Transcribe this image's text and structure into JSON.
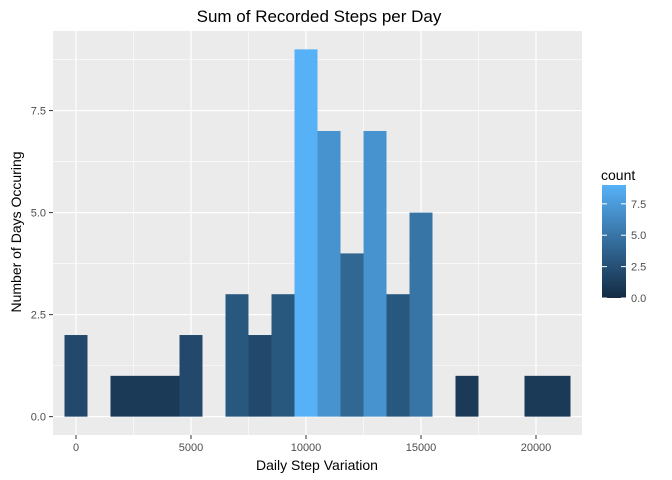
{
  "chart_data": {
    "type": "bar",
    "title": "Sum of Recorded Steps per Day",
    "xlabel": "Daily Step Variation",
    "ylabel": "Number of Days Occuring",
    "xlim": [
      -1000,
      22000
    ],
    "ylim": [
      -0.45,
      9.45
    ],
    "x_ticks": [
      0,
      5000,
      10000,
      15000,
      20000
    ],
    "x_tick_labels": [
      "0",
      "5000",
      "10000",
      "15000",
      "20000"
    ],
    "y_ticks": [
      0,
      2.5,
      5,
      7.5
    ],
    "y_tick_labels": [
      "0.0",
      "2.5",
      "5.0",
      "7.5"
    ],
    "bin_width": 1000,
    "bins": [
      {
        "x": 0,
        "count": 2
      },
      {
        "x": 1000,
        "count": 0
      },
      {
        "x": 2000,
        "count": 1
      },
      {
        "x": 3000,
        "count": 1
      },
      {
        "x": 4000,
        "count": 1
      },
      {
        "x": 5000,
        "count": 2
      },
      {
        "x": 6000,
        "count": 0
      },
      {
        "x": 7000,
        "count": 3
      },
      {
        "x": 8000,
        "count": 2
      },
      {
        "x": 9000,
        "count": 3
      },
      {
        "x": 10000,
        "count": 9
      },
      {
        "x": 11000,
        "count": 7
      },
      {
        "x": 12000,
        "count": 4
      },
      {
        "x": 13000,
        "count": 7
      },
      {
        "x": 14000,
        "count": 3
      },
      {
        "x": 15000,
        "count": 5
      },
      {
        "x": 16000,
        "count": 0
      },
      {
        "x": 17000,
        "count": 1
      },
      {
        "x": 18000,
        "count": 0
      },
      {
        "x": 19000,
        "count": 0
      },
      {
        "x": 20000,
        "count": 1
      },
      {
        "x": 21000,
        "count": 1
      }
    ],
    "grid": true,
    "legend": {
      "title": "count",
      "placement": "right",
      "range": [
        0,
        9
      ],
      "ticks": [
        0,
        2.5,
        5,
        7.5
      ],
      "tick_labels": [
        "0.0",
        "2.5",
        "5.0",
        "7.5"
      ],
      "color_low": "#132b43",
      "color_high": "#56b1f7"
    },
    "panel_background": "#ebebeb",
    "grid_color": "#ffffff"
  }
}
